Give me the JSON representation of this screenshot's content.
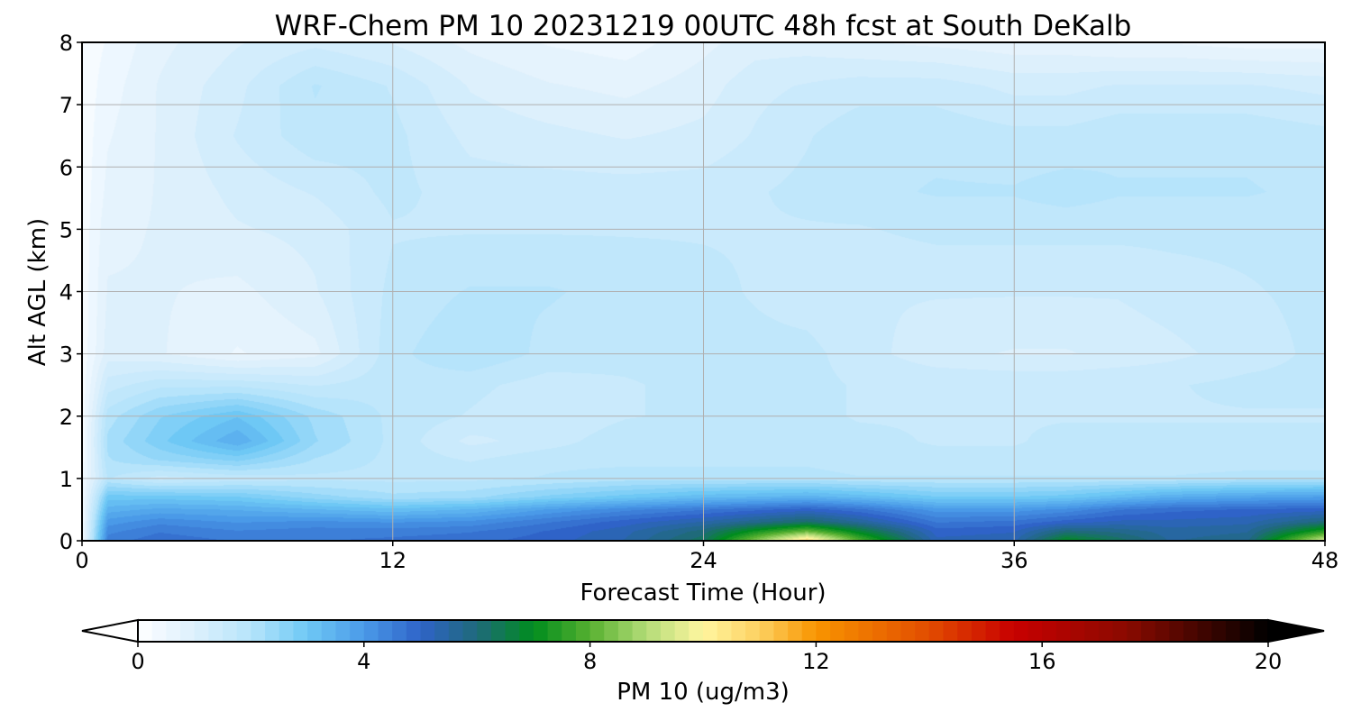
{
  "chart_data": {
    "type": "heatmap",
    "title": "WRF-Chem PM 10  20231219 00UTC 48h fcst at South DeKalb",
    "xlabel": "Forecast Time (Hour)",
    "ylabel": "Alt AGL (km)",
    "xlim": [
      0,
      48
    ],
    "ylim": [
      0,
      8
    ],
    "xticks": [
      "0",
      "12",
      "24",
      "36",
      "48"
    ],
    "yticks": [
      "0",
      "1",
      "2",
      "3",
      "4",
      "5",
      "6",
      "7",
      "8"
    ],
    "grid": true,
    "colorbar": {
      "label": "PM 10  (ug/m3)",
      "range": [
        0,
        20
      ],
      "ticks": [
        "0",
        "4",
        "8",
        "12",
        "16",
        "20"
      ],
      "extend": "both",
      "colors": [
        {
          "v": 0,
          "c": "#ffffff"
        },
        {
          "v": 0.4,
          "c": "#f0f8ff"
        },
        {
          "v": 1.0,
          "c": "#ddf0fc"
        },
        {
          "v": 2.0,
          "c": "#b6e4fb"
        },
        {
          "v": 3.0,
          "c": "#6ec8f5"
        },
        {
          "v": 4.0,
          "c": "#4a9ae8"
        },
        {
          "v": 5.0,
          "c": "#2f63c8"
        },
        {
          "v": 6.0,
          "c": "#1f6a7a"
        },
        {
          "v": 7.0,
          "c": "#008c1e"
        },
        {
          "v": 8.0,
          "c": "#57b030"
        },
        {
          "v": 9.0,
          "c": "#b4dc78"
        },
        {
          "v": 10.0,
          "c": "#fff6a0"
        },
        {
          "v": 11.0,
          "c": "#fdd060"
        },
        {
          "v": 12.0,
          "c": "#f89400"
        },
        {
          "v": 14.0,
          "c": "#e24c00"
        },
        {
          "v": 15.5,
          "c": "#c80000"
        },
        {
          "v": 17.5,
          "c": "#8a0a00"
        },
        {
          "v": 20.0,
          "c": "#000000"
        }
      ]
    },
    "field": {
      "times": [
        0,
        1,
        3,
        6,
        9,
        12,
        15,
        18,
        21,
        24,
        26,
        28,
        30,
        33,
        36,
        38,
        40,
        42,
        45,
        48
      ],
      "heights": [
        0,
        0.15,
        0.3,
        0.5,
        0.7,
        1.0,
        1.3,
        1.6,
        2.0,
        2.5,
        3.0,
        4.0,
        5.0,
        5.6,
        6.5,
        7.3,
        8.0
      ],
      "values": [
        [
          0.3,
          4.5,
          4.8,
          4.6,
          4.6,
          4.7,
          4.8,
          5.0,
          5.4,
          6.3,
          8.5,
          10.8,
          8.0,
          5.2,
          5.3,
          7.0,
          6.3,
          5.6,
          5.8,
          9.5
        ],
        [
          0.3,
          4.3,
          4.6,
          4.4,
          4.5,
          4.5,
          4.6,
          4.9,
          5.3,
          6.0,
          7.2,
          8.2,
          6.8,
          5.0,
          5.1,
          6.0,
          5.8,
          5.5,
          5.6,
          7.5
        ],
        [
          0.3,
          4.0,
          4.3,
          4.1,
          4.2,
          4.1,
          4.2,
          4.6,
          5.0,
          5.4,
          5.8,
          6.2,
          5.6,
          4.6,
          4.7,
          5.0,
          5.2,
          5.2,
          5.3,
          6.0
        ],
        [
          0.3,
          3.5,
          3.7,
          3.6,
          3.4,
          3.2,
          3.4,
          3.9,
          4.3,
          4.6,
          4.8,
          5.0,
          4.7,
          4.0,
          4.0,
          4.2,
          4.6,
          4.8,
          4.9,
          5.0
        ],
        [
          0.3,
          3.0,
          3.0,
          2.9,
          2.5,
          2.2,
          2.3,
          2.7,
          3.0,
          3.3,
          3.4,
          3.5,
          3.3,
          2.9,
          2.9,
          3.0,
          3.3,
          3.6,
          3.8,
          3.9
        ],
        [
          0.3,
          1.9,
          1.5,
          1.7,
          1.8,
          1.8,
          1.8,
          1.9,
          2.0,
          2.0,
          2.0,
          2.0,
          1.9,
          1.9,
          1.9,
          1.9,
          1.9,
          1.9,
          2.0,
          2.0
        ],
        [
          0.2,
          2.1,
          2.4,
          2.7,
          2.1,
          1.8,
          1.6,
          1.8,
          1.8,
          1.8,
          1.8,
          1.8,
          1.7,
          1.7,
          1.7,
          1.7,
          1.7,
          1.7,
          1.7,
          1.7
        ],
        [
          0.2,
          2.2,
          2.8,
          3.6,
          2.4,
          1.8,
          1.3,
          1.5,
          1.8,
          1.8,
          1.8,
          1.8,
          1.7,
          1.6,
          1.6,
          1.7,
          1.7,
          1.7,
          1.7,
          1.7
        ],
        [
          0.2,
          2.0,
          2.6,
          3.1,
          2.3,
          1.8,
          1.6,
          1.4,
          1.6,
          1.7,
          1.7,
          1.7,
          1.6,
          1.6,
          1.6,
          1.6,
          1.6,
          1.6,
          1.6,
          1.6
        ],
        [
          0.2,
          1.5,
          1.8,
          1.8,
          1.6,
          1.8,
          1.7,
          1.5,
          1.6,
          1.7,
          1.7,
          1.7,
          1.6,
          1.6,
          1.6,
          1.6,
          1.6,
          1.6,
          1.7,
          1.7
        ],
        [
          0.2,
          1.0,
          0.9,
          0.6,
          0.8,
          1.8,
          2.1,
          1.8,
          1.7,
          1.7,
          1.7,
          1.7,
          1.5,
          1.2,
          1.1,
          1.1,
          1.2,
          1.3,
          1.5,
          1.7
        ],
        [
          0.2,
          0.9,
          0.9,
          0.8,
          1.1,
          1.7,
          1.9,
          1.9,
          1.8,
          1.7,
          1.6,
          1.5,
          1.4,
          1.4,
          1.4,
          1.4,
          1.4,
          1.5,
          1.6,
          1.7
        ],
        [
          0.2,
          0.8,
          0.9,
          1.1,
          1.2,
          1.6,
          1.6,
          1.6,
          1.6,
          1.6,
          1.6,
          1.6,
          1.6,
          1.7,
          1.7,
          1.7,
          1.7,
          1.7,
          1.7,
          1.7
        ],
        [
          0.2,
          0.7,
          0.9,
          1.2,
          1.4,
          1.7,
          1.5,
          1.5,
          1.5,
          1.5,
          1.6,
          1.7,
          1.8,
          1.9,
          1.9,
          2.0,
          1.9,
          1.9,
          1.9,
          1.8
        ],
        [
          0.2,
          0.6,
          0.9,
          1.4,
          1.8,
          1.7,
          1.3,
          1.2,
          1.1,
          1.2,
          1.4,
          1.6,
          1.8,
          1.8,
          1.7,
          1.7,
          1.8,
          1.8,
          1.8,
          1.7
        ],
        [
          0.2,
          0.5,
          0.9,
          1.3,
          1.9,
          1.6,
          1.1,
          0.9,
          0.8,
          1.0,
          1.3,
          1.4,
          1.5,
          1.5,
          1.3,
          1.3,
          1.4,
          1.4,
          1.4,
          1.3
        ],
        [
          0.2,
          0.4,
          0.8,
          1.1,
          1.3,
          1.1,
          0.8,
          0.6,
          0.5,
          0.8,
          1.0,
          1.0,
          0.9,
          0.8,
          0.7,
          0.7,
          0.6,
          0.6,
          0.5,
          0.5
        ]
      ]
    }
  }
}
